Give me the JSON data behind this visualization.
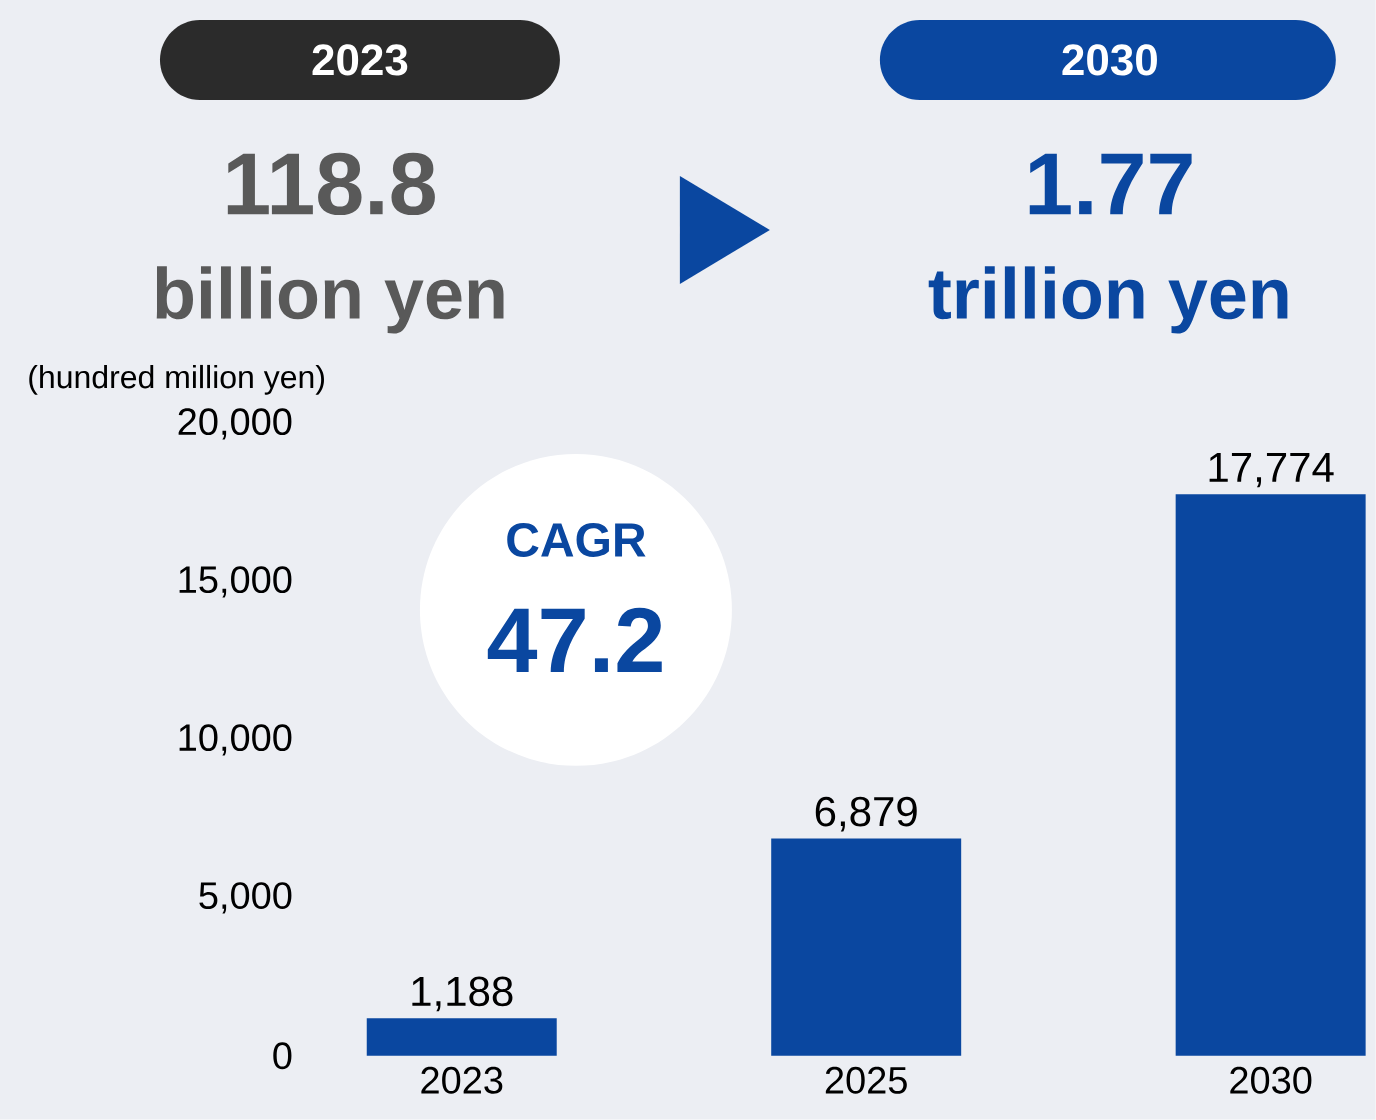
{
  "chart_data": {
    "type": "bar",
    "ylabel": "(hundred million yen)",
    "categories": [
      "2023",
      "2025",
      "2030"
    ],
    "values": [
      1188,
      6879,
      17774
    ],
    "value_labels": [
      "1,188",
      "6,879",
      "17,774"
    ],
    "color": "#0a47a0",
    "ylim": [
      0,
      20000
    ],
    "yticks": [
      0,
      {
        "value": 5000,
        "label": "5,000"
      },
      {
        "value": 10000,
        "label": "10,000"
      },
      {
        "value": 15000,
        "label": "15,000"
      },
      {
        "value": 20000,
        "label": "20,000"
      }
    ],
    "annotations": [
      "2023",
      "118.8",
      "billion yen",
      "2030",
      "1.77",
      "trillion yen",
      "CAGR",
      "47.2"
    ]
  }
}
